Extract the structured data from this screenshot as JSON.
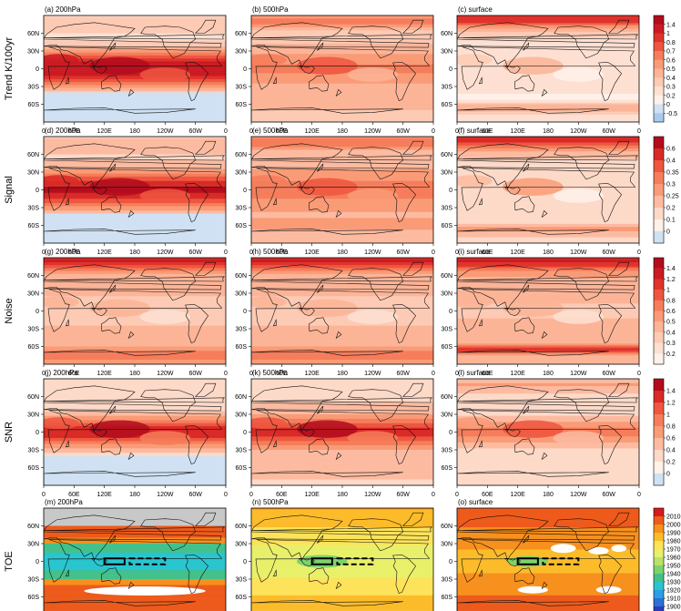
{
  "figure": {
    "rows": [
      {
        "label": "Trend  K/100yr",
        "colorbar": {
          "ticks": [
            "1.4",
            "1",
            "0.8",
            "0.7",
            "0.6",
            "0.5",
            "0.4",
            "0.3",
            "0.2",
            "0",
            "-0.5"
          ],
          "colors": [
            "#b20c1d",
            "#cb1b22",
            "#e0332b",
            "#ee5640",
            "#f67d5b",
            "#fa9b77",
            "#fcb497",
            "#fdcab4",
            "#fde0d2",
            "#fff1ea",
            "#cfe1f3",
            "#a8cbed"
          ]
        },
        "panels": [
          {
            "title": "(a) 200hPa",
            "level": "200",
            "metric": "trend"
          },
          {
            "title": "(b) 500hPa",
            "level": "500",
            "metric": "trend"
          },
          {
            "title": "(c) surface",
            "level": "sfc",
            "metric": "trend"
          }
        ]
      },
      {
        "label": "Signal",
        "colorbar": {
          "ticks": [
            "0.6",
            "0.4",
            "0.35",
            "0.3",
            "0.25",
            "0.2",
            "0.1",
            "0"
          ],
          "colors": [
            "#b20c1d",
            "#d92a27",
            "#ee5640",
            "#f67d5b",
            "#fa9b77",
            "#fcbba1",
            "#fdd9c8",
            "#fff1ea",
            "#cfe1f3"
          ]
        },
        "panels": [
          {
            "title": "(d) 200hPa",
            "level": "200",
            "metric": "signal"
          },
          {
            "title": "(e) 500hPa",
            "level": "500",
            "metric": "signal"
          },
          {
            "title": "(f) surface",
            "level": "sfc",
            "metric": "signal"
          }
        ]
      },
      {
        "label": "Noise",
        "colorbar": {
          "ticks": [
            "1.4",
            "1.2",
            "1",
            "0.8",
            "0.6",
            "0.5",
            "0.4",
            "0.3",
            "0.2"
          ],
          "colors": [
            "#b20c1d",
            "#cb1b22",
            "#e0332b",
            "#ee5640",
            "#f67d5b",
            "#fa9b77",
            "#fcb497",
            "#fdcab4",
            "#fde0d2",
            "#fff1ea"
          ]
        },
        "panels": [
          {
            "title": "(g) 200hPa",
            "level": "200",
            "metric": "noise"
          },
          {
            "title": "(h) 500hPa",
            "level": "500",
            "metric": "noise"
          },
          {
            "title": "(i) surface",
            "level": "sfc",
            "metric": "noise"
          }
        ]
      },
      {
        "label": "SNR",
        "colorbar": {
          "ticks": [
            "1.4",
            "1.2",
            "1",
            "0.8",
            "0.6",
            "0.4",
            "0.2",
            "0"
          ],
          "colors": [
            "#b20c1d",
            "#d92a27",
            "#ee5640",
            "#f67d5b",
            "#fa9b77",
            "#fcbba1",
            "#fdd9c8",
            "#fff1ea",
            "#cfe1f3"
          ]
        },
        "panels": [
          {
            "title": "(j) 200hPa",
            "level": "200",
            "metric": "snr"
          },
          {
            "title": "(k) 500hPa",
            "level": "500",
            "metric": "snr"
          },
          {
            "title": "(l) surface",
            "level": "sfc",
            "metric": "snr"
          }
        ]
      },
      {
        "label": "TOE",
        "colorbar": {
          "ticks": [
            "2010",
            "2000",
            "1990",
            "1980",
            "1970",
            "1960",
            "1950",
            "1940",
            "1930",
            "1920",
            "1910",
            "1900"
          ],
          "colors": [
            "#d7191c",
            "#ee5a1b",
            "#f7901d",
            "#fcbc2a",
            "#fde35a",
            "#e8f06a",
            "#b6e36b",
            "#7dd36a",
            "#44c08a",
            "#29c5cf",
            "#2b9ee6",
            "#2d6fd6",
            "#2b3bb8"
          ]
        },
        "panels": [
          {
            "title": "(m) 200hPa",
            "level": "200",
            "metric": "toe"
          },
          {
            "title": "(n) 500hPa",
            "level": "500",
            "metric": "toe"
          },
          {
            "title": "(o) surface",
            "level": "sfc",
            "metric": "toe"
          }
        ]
      }
    ],
    "xticks": [
      "0",
      "60E",
      "120E",
      "180",
      "120W",
      "60W",
      "0"
    ],
    "yticks": [
      "60N",
      "30N",
      "0",
      "30S",
      "60S"
    ],
    "box_colors": {
      "solid": "#000000",
      "dashed": "#000000"
    }
  },
  "chart_data": {
    "type": "heatmap",
    "description": "15 global lon-lat maps in a 5x3 grid (rows: Trend K/100yr, Signal, Noise, SNR, TOE; columns: 200hPa, 500hPa, surface)",
    "x_axis": {
      "ticks": [
        "0",
        "60E",
        "120E",
        "180",
        "120W",
        "60W",
        "0"
      ],
      "range_deg_east": [
        0,
        360
      ]
    },
    "y_axis": {
      "ticks": [
        "60N",
        "30N",
        "0",
        "30S",
        "60S"
      ],
      "range_deg": [
        -90,
        90
      ]
    },
    "regions": [
      {
        "style": "solid",
        "lon": [
          120,
          160
        ],
        "lat": [
          -5,
          5
        ]
      },
      {
        "style": "dashed",
        "lon": [
          170,
          240
        ],
        "lat": [
          -5,
          5
        ]
      }
    ]
  }
}
